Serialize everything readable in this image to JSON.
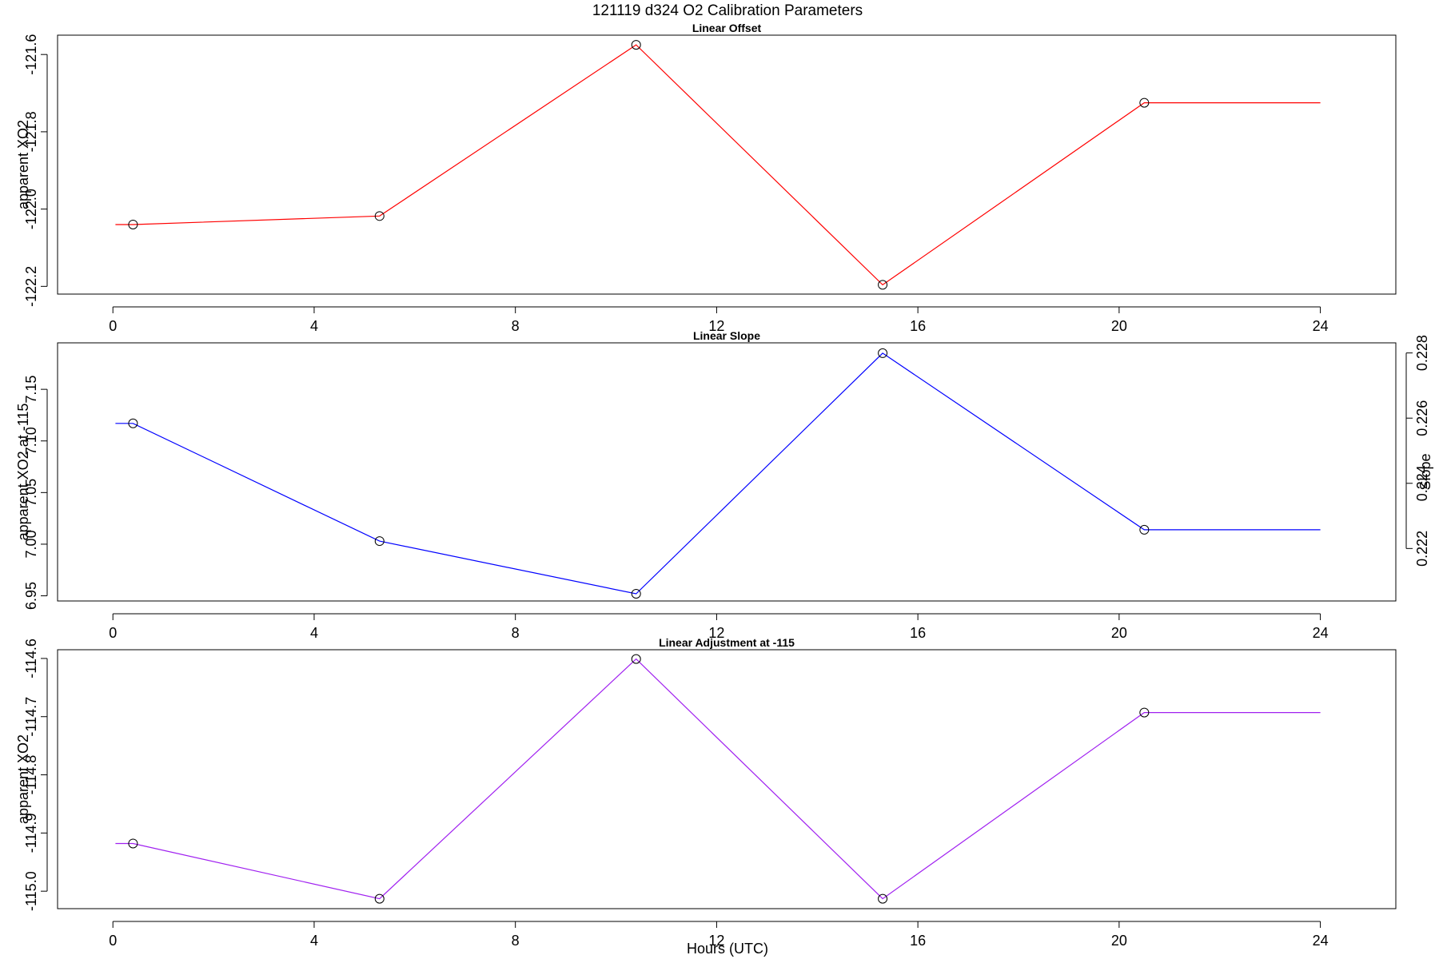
{
  "title": "121119   d324   O2 Calibration Parameters",
  "xlabel": "Hours (UTC)",
  "chart_data": [
    {
      "type": "line",
      "title": "Linear Offset",
      "xlabel": "",
      "ylabel": "apparent XO2",
      "xlim": [
        -1.1,
        25.5
      ],
      "ylim": [
        -122.22,
        -121.55
      ],
      "xticks": [
        0,
        4,
        8,
        12,
        16,
        20,
        24
      ],
      "yticks": [
        -122.2,
        -122.0,
        -121.8,
        -121.6
      ],
      "ytick_labels": [
        "-122.2",
        "-122.0",
        "-121.8",
        "-121.6"
      ],
      "line_color": "#ff0000",
      "series": [
        {
          "x": [
            0.05,
            0.4,
            5.3,
            10.4,
            15.3,
            20.5,
            24.0
          ],
          "y": [
            -122.04,
            -122.04,
            -122.018,
            -121.575,
            -122.196,
            -121.725,
            -121.725
          ],
          "markers": [
            false,
            true,
            true,
            true,
            true,
            true,
            false
          ]
        }
      ]
    },
    {
      "type": "line",
      "title": "Linear Slope",
      "xlabel": "",
      "ylabel": "apparent XO2 at -115",
      "y2label": "Slope",
      "xlim": [
        -1.1,
        25.5
      ],
      "ylim": [
        6.945,
        7.195
      ],
      "xticks": [
        0,
        4,
        8,
        12,
        16,
        20,
        24
      ],
      "yticks": [
        6.95,
        7.0,
        7.05,
        7.1,
        7.15
      ],
      "ytick_labels": [
        "6.95",
        "7.00",
        "7.05",
        "7.10",
        "7.15"
      ],
      "y2ticks": [
        0.222,
        0.224,
        0.226,
        0.228
      ],
      "y2tick_labels": [
        "0.222",
        "0.224",
        "0.226",
        "0.228"
      ],
      "y2lim": [
        0.22039,
        0.22831
      ],
      "line_color": "#0000ff",
      "series": [
        {
          "x": [
            0.05,
            0.4,
            5.3,
            10.4,
            15.3,
            20.5,
            24.0
          ],
          "y": [
            7.117,
            7.117,
            7.003,
            6.952,
            7.185,
            7.014,
            7.014
          ],
          "markers": [
            false,
            true,
            true,
            true,
            true,
            true,
            false
          ]
        }
      ]
    },
    {
      "type": "line",
      "title": "Linear Adjustment at -115",
      "xlabel": "Hours (UTC)",
      "ylabel": "apparent XO2",
      "xlim": [
        -1.1,
        25.5
      ],
      "ylim": [
        -115.03,
        -114.585
      ],
      "xticks": [
        0,
        4,
        8,
        12,
        16,
        20,
        24
      ],
      "yticks": [
        -115.0,
        -114.9,
        -114.8,
        -114.7,
        -114.6
      ],
      "ytick_labels": [
        "-115.0",
        "-114.9",
        "-114.8",
        "-114.7",
        "-114.6"
      ],
      "line_color": "#a020f0",
      "series": [
        {
          "x": [
            0.05,
            0.4,
            5.3,
            10.4,
            15.3,
            20.5,
            24.0
          ],
          "y": [
            -114.918,
            -114.918,
            -115.013,
            -114.601,
            -115.013,
            -114.693,
            -114.693
          ],
          "markers": [
            false,
            true,
            true,
            true,
            true,
            true,
            false
          ]
        }
      ]
    }
  ]
}
